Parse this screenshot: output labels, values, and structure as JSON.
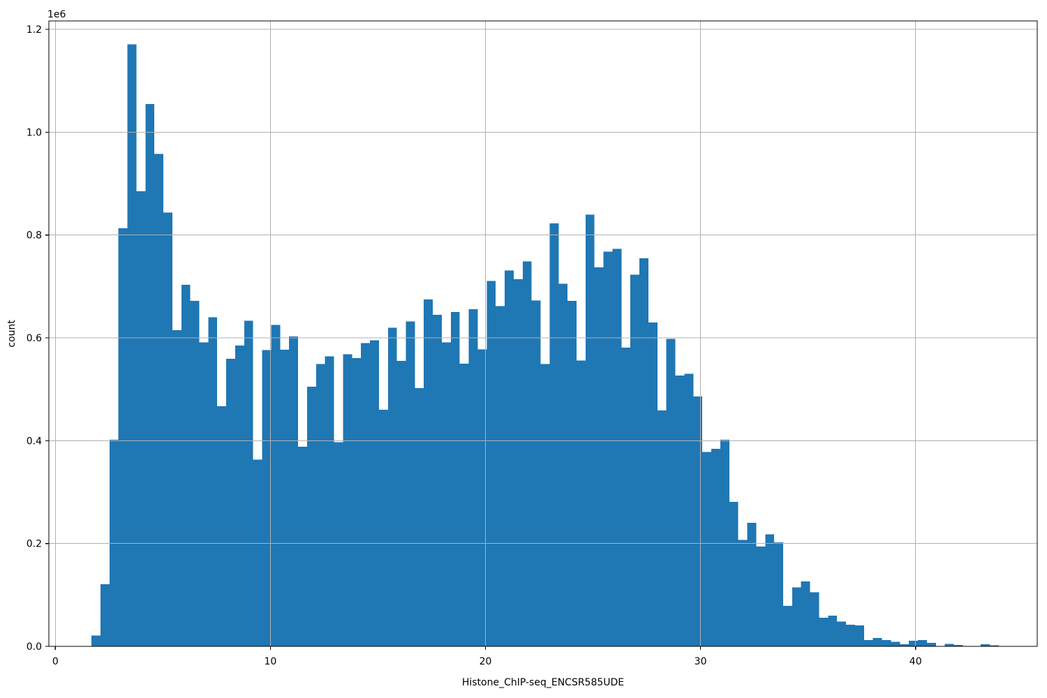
{
  "chart_data": {
    "type": "bar",
    "subtype": "histogram",
    "title": "",
    "xlabel": "Histone_ChIP-seq_ENCSR585UDE",
    "ylabel": "count",
    "y_offset_text": "1e6",
    "y_units_multiplier": 1000000,
    "bar_color": "#1f77b4",
    "grid": true,
    "grid_color": "#b0b0b0",
    "spine_color": "#000000",
    "xlim": [
      -0.33,
      45.66
    ],
    "ylim_e6": [
      0,
      1.2165
    ],
    "x_tick_values": [
      0,
      10,
      20,
      30,
      40
    ],
    "x_tick_labels": [
      "0",
      "10",
      "20",
      "30",
      "40"
    ],
    "y_tick_values_e6": [
      0.0,
      0.2,
      0.4,
      0.6,
      0.8,
      1.0,
      1.2
    ],
    "y_tick_labels": [
      "0.0",
      "0.2",
      "0.4",
      "0.6",
      "0.8",
      "1.0",
      "1.2"
    ],
    "bin_start": 1.68,
    "bin_width": 0.4177,
    "counts_e6": [
      0.021,
      0.121,
      0.402,
      0.813,
      1.171,
      0.885,
      1.055,
      0.958,
      0.844,
      0.615,
      0.703,
      0.672,
      0.591,
      0.64,
      0.467,
      0.559,
      0.585,
      0.633,
      0.363,
      0.576,
      0.625,
      0.577,
      0.603,
      0.388,
      0.505,
      0.549,
      0.564,
      0.397,
      0.568,
      0.561,
      0.59,
      0.595,
      0.46,
      0.62,
      0.555,
      0.632,
      0.502,
      0.675,
      0.645,
      0.591,
      0.65,
      0.55,
      0.656,
      0.578,
      0.711,
      0.662,
      0.731,
      0.714,
      0.749,
      0.673,
      0.549,
      0.823,
      0.705,
      0.672,
      0.556,
      0.84,
      0.737,
      0.768,
      0.773,
      0.581,
      0.723,
      0.755,
      0.63,
      0.459,
      0.598,
      0.527,
      0.53,
      0.486,
      0.378,
      0.384,
      0.402,
      0.281,
      0.207,
      0.24,
      0.194,
      0.218,
      0.202,
      0.079,
      0.115,
      0.126,
      0.105,
      0.056,
      0.06,
      0.048,
      0.042,
      0.041,
      0.012,
      0.016,
      0.012,
      0.009,
      0.004,
      0.011,
      0.012,
      0.007,
      0.001,
      0.005,
      0.003,
      0.001,
      0.0,
      0.004,
      0.002
    ]
  }
}
